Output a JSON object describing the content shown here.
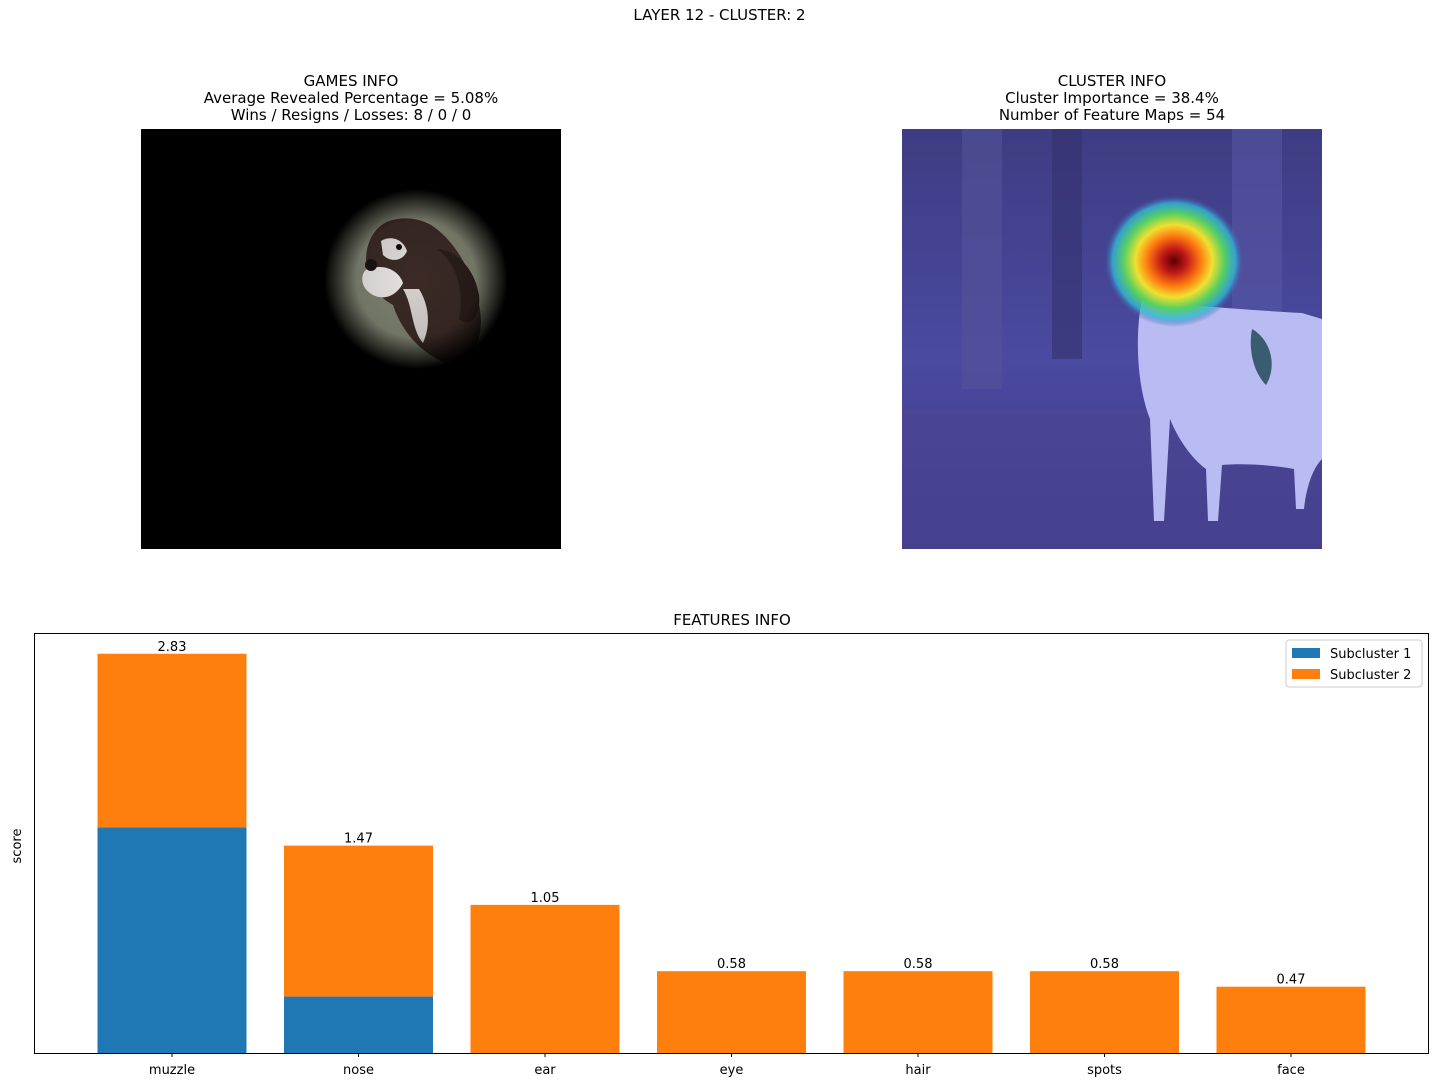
{
  "suptitle": "LAYER 12 - CLUSTER: 2",
  "games_panel": {
    "heading": "GAMES INFO",
    "line1": "Average Revealed Percentage = 5.08%",
    "line2": "Wins / Resigns / Losses: 8 / 0 / 0"
  },
  "cluster_panel": {
    "heading": "CLUSTER INFO",
    "line1": "Cluster Importance = 38.4%",
    "line2": "Number of Feature Maps = 54"
  },
  "chart_data": {
    "type": "bar",
    "stacked": true,
    "title": "FEATURES INFO",
    "xlabel": "",
    "ylabel": "score",
    "categories": [
      "muzzle",
      "nose",
      "ear",
      "eye",
      "hair",
      "spots",
      "face"
    ],
    "series": [
      {
        "name": "Subcluster 1",
        "color": "#1f77b4",
        "values": [
          1.6,
          0.4,
          0,
          0,
          0,
          0,
          0
        ]
      },
      {
        "name": "Subcluster 2",
        "color": "#ff7f0e",
        "values": [
          1.23,
          1.07,
          1.05,
          0.58,
          0.58,
          0.58,
          0.47
        ]
      }
    ],
    "totals": [
      "2.83",
      "1.47",
      "1.05",
      "0.58",
      "0.58",
      "0.58",
      "0.47"
    ],
    "ylim": [
      0,
      2.97
    ],
    "y_ticks_visible": false,
    "grid": false,
    "legend_position": "top-right"
  }
}
